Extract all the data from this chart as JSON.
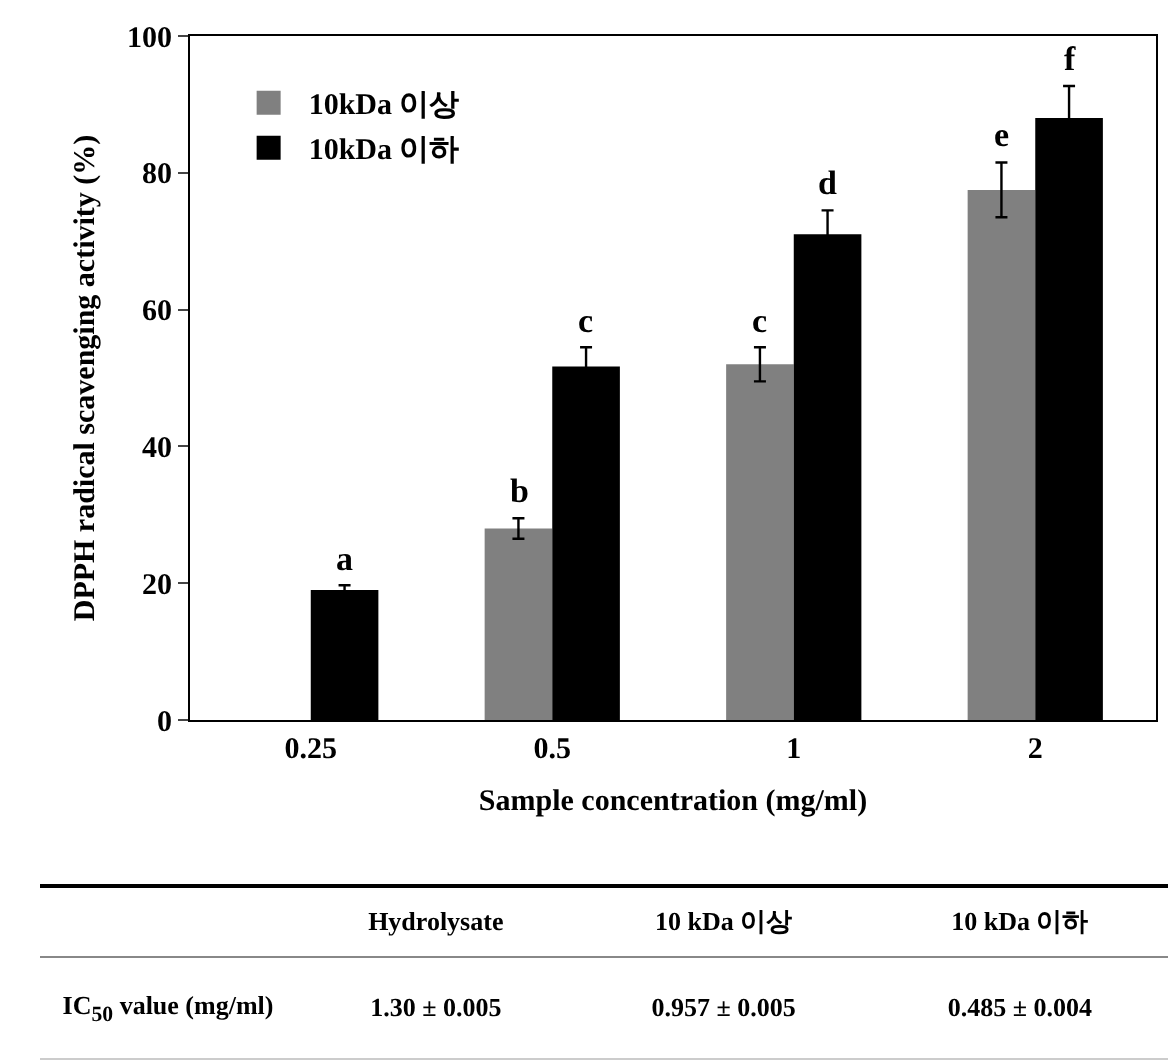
{
  "chart_data": {
    "type": "bar",
    "xlabel": "Sample concentration (mg/ml)",
    "ylabel": "DPPH radical scavenging activity (%)",
    "categories": [
      "0.25",
      "0.5",
      "1",
      "2"
    ],
    "series": [
      {
        "name": "10kDa 이상",
        "color": "#808080",
        "values": [
          null,
          28,
          52,
          77.5
        ],
        "errors": [
          null,
          1.5,
          2.5,
          4
        ]
      },
      {
        "name": "10kDa 이하",
        "color": "#000000",
        "values": [
          19,
          51.7,
          71,
          88
        ],
        "errors": [
          0.7,
          2.8,
          3.5,
          4.7
        ]
      }
    ],
    "ylim": [
      0,
      100
    ],
    "yticks": [
      0,
      20,
      40,
      60,
      80,
      100
    ],
    "grid": false,
    "legend": "top left",
    "annotations": [
      {
        "text": "a",
        "x": "0.25",
        "y": 19
      },
      {
        "text": "b",
        "x": "0.5",
        "y": 28
      },
      {
        "text": "c",
        "x": "0.5",
        "y": 51.7
      },
      {
        "text": "c",
        "x": "1",
        "y": 52
      },
      {
        "text": "d",
        "x": "1",
        "y": 71
      },
      {
        "text": "e",
        "x": "2",
        "y": 77.5
      },
      {
        "text": "f",
        "x": "2",
        "y": 88
      },
      "Hydrolysate",
      "10 kDa 이상",
      "10 kDa 이하",
      "IC$_{50}$ value (mg/ml)",
      "1.30 ± 0.005",
      "0.957 ± 0.005",
      "0.485 ± 0.004"
    ]
  }
}
